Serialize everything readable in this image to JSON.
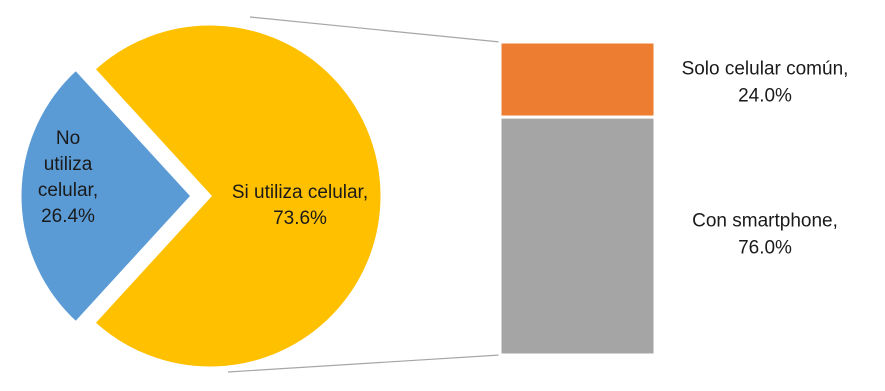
{
  "chart_data": {
    "type": "pie",
    "title": "",
    "pie": {
      "slices": [
        {
          "label_lines": [
            "Si utiliza celular,",
            "73.6%"
          ],
          "label": "Si utiliza celular",
          "value": 73.6,
          "color": "#FFC000"
        },
        {
          "label_lines": [
            "No",
            "utiliza",
            "celular,",
            "26.4%"
          ],
          "label": "No utiliza celular",
          "value": 26.4,
          "color": "#5B9BD5",
          "exploded": true
        }
      ]
    },
    "breakdown": {
      "of_slice": "Si utiliza celular",
      "segments": [
        {
          "label_lines": [
            "Solo celular común,",
            "24.0%"
          ],
          "label": "Solo celular común",
          "value": 24.0,
          "color": "#ED7D31"
        },
        {
          "label_lines": [
            "Con smartphone,",
            "76.0%"
          ],
          "label": "Con smartphone",
          "value": 76.0,
          "color": "#A5A5A5"
        }
      ]
    },
    "connector_color": "#A6A6A6"
  }
}
